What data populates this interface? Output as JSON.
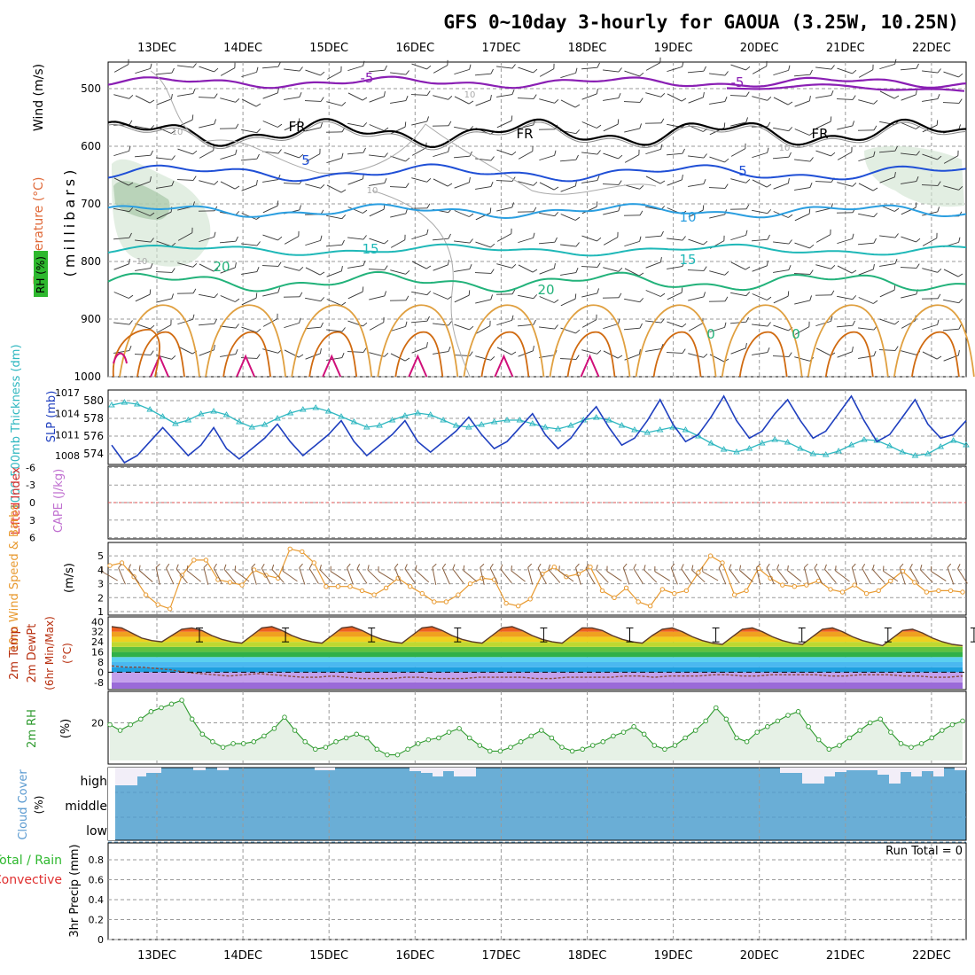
{
  "title": "GFS 0~10day 3-hourly for GAOUA (3.25W, 10.25N)",
  "dates": [
    "13DEC",
    "14DEC",
    "15DEC",
    "16DEC",
    "17DEC",
    "18DEC",
    "19DEC",
    "20DEC",
    "21DEC",
    "22DEC"
  ],
  "panel1": {
    "ylabel": "(millibars)",
    "label_wind": "Wind (m/s)",
    "label_temp": "Temperature (°C)",
    "label_rh": "RH (%)",
    "yticks": [
      "500",
      "600",
      "700",
      "800",
      "900",
      "1000"
    ],
    "contour_labels": [
      "-5",
      "-5",
      "FR",
      "FR",
      "FR",
      "5",
      "5",
      "10",
      "10",
      "15",
      "15",
      "20",
      "20",
      "0",
      "0",
      "10",
      "10",
      "10",
      "10"
    ]
  },
  "panel2": {
    "label_thk": "1000-500mb Thickness (dm)",
    "label_slp": "SLP (mb)",
    "yticks_left": [
      "580",
      "578",
      "576",
      "574"
    ],
    "yticks_right": [
      "1017",
      "1014",
      "1011",
      "1008"
    ]
  },
  "panel3": {
    "label_li": "Lifted Index",
    "label_cape": "CAPE (J/kg)",
    "yticks": [
      "-6",
      "-3",
      "0",
      "3",
      "6"
    ]
  },
  "panel4": {
    "label": "10m Wind Speed & Barbs",
    "unit": "(m/s)",
    "yticks": [
      "5",
      "4",
      "3",
      "2",
      "1"
    ]
  },
  "panel5": {
    "label1": "2m Temp",
    "label2": "2m DewPt",
    "label3": "(6hr Min/Max)",
    "unit": "(°C)",
    "yticks": [
      "40",
      "32",
      "24",
      "16",
      "8",
      "0",
      "-8"
    ]
  },
  "panel6": {
    "label": "2m RH",
    "unit": "(%)",
    "yticks": [
      "20"
    ]
  },
  "panel7": {
    "label": "Cloud Cover",
    "unit": "(%)",
    "levels": [
      "high",
      "middle",
      "low"
    ]
  },
  "panel8": {
    "label1": "Total / Rain",
    "label2": "Convective",
    "label3": "3hr Precip (mm)",
    "run_total": "Run Total = 0",
    "yticks": [
      "0.8",
      "0.6",
      "0.4",
      "0.2",
      "0"
    ]
  },
  "colors": {
    "grid": "#9a9a9a",
    "purple": "#8a1fb4",
    "blue": "#1f4fd6",
    "lightblue": "#2a9ee0",
    "teal": "#1fb8b8",
    "green20": "#22b27a",
    "orange": "#e0a040",
    "darkorange": "#d06a10",
    "magenta": "#d0107a",
    "slp": "#1f3fbf",
    "thickness": "#2fb7c0",
    "wind10": "#e89a30",
    "rh": "#2e9a2e",
    "rhfill": "#e6f1e6",
    "cloud": "#6aaed6"
  },
  "chart_data": [
    {
      "type": "line",
      "title": "1000-500mb Thickness (dm) / SLP (mb)",
      "x": "3-hourly steps 12DEC 12Z to 22DEC",
      "series": [
        {
          "name": "SLP (mb)",
          "values": [
            1009.5,
            1007,
            1008,
            1010,
            1012,
            1010,
            1008,
            1009.5,
            1012,
            1009,
            1007.5,
            1009,
            1010.5,
            1012.5,
            1010,
            1008,
            1009.5,
            1011,
            1013,
            1010,
            1008,
            1009.5,
            1011,
            1013,
            1010,
            1008.5,
            1010,
            1011.5,
            1013.5,
            1011,
            1009,
            1010,
            1012,
            1014,
            1011,
            1009,
            1010.5,
            1013,
            1015,
            1012,
            1009.5,
            1010.5,
            1013,
            1016,
            1012.5,
            1010,
            1011,
            1013.5,
            1016.5,
            1013,
            1010.5,
            1011.5,
            1014,
            1016,
            1013,
            1010.5,
            1011.5,
            1014,
            1016.5,
            1013,
            1010,
            1011,
            1013.5,
            1016,
            1012.5,
            1010.5,
            1011,
            1013
          ]
        },
        {
          "name": "1000-500mb Thickness (dm)",
          "values": [
            579.5,
            579.8,
            579.6,
            579,
            578.2,
            577.4,
            577.8,
            578.5,
            578.8,
            578.4,
            577.6,
            577,
            577.3,
            578,
            578.6,
            579,
            579.2,
            578.8,
            578.2,
            577.6,
            577,
            577.2,
            577.8,
            578.3,
            578.6,
            578.4,
            577.8,
            577.2,
            577,
            577.3,
            577.6,
            577.8,
            577.8,
            577.4,
            577,
            576.8,
            577.2,
            577.8,
            578.1,
            577.8,
            577.2,
            576.7,
            576.4,
            576.7,
            577,
            576.7,
            576,
            575.2,
            574.5,
            574.2,
            574.6,
            575.2,
            575.6,
            575.3,
            574.6,
            574,
            573.9,
            574.3,
            575,
            575.6,
            575.5,
            574.9,
            574.2,
            573.8,
            574,
            574.8,
            575.5,
            575
          ]
        }
      ]
    },
    {
      "type": "line",
      "title": "10m Wind Speed (m/s)",
      "series": [
        {
          "name": "10m Wind",
          "values": [
            4.3,
            4.5,
            3.5,
            2.2,
            1.5,
            1.2,
            3.6,
            4.7,
            4.7,
            3.3,
            3.1,
            2.9,
            4.0,
            3.6,
            3.4,
            5.5,
            5.3,
            4.5,
            2.8,
            2.8,
            2.8,
            2.5,
            2.2,
            2.7,
            3.4,
            2.8,
            2.3,
            1.7,
            1.7,
            2.2,
            3.0,
            3.4,
            3.3,
            1.6,
            1.4,
            1.9,
            3.7,
            4.2,
            3.5,
            3.7,
            4.2,
            2.5,
            2.0,
            2.7,
            1.7,
            1.4,
            2.6,
            2.3,
            2.5,
            3.8,
            5.0,
            4.5,
            2.2,
            2.5,
            4.1,
            3.4,
            2.9,
            2.8,
            2.9,
            3.2,
            2.6,
            2.4,
            2.9,
            2.3,
            2.5,
            3.2,
            3.9,
            3.1,
            2.4,
            2.5,
            2.5,
            2.4
          ]
        }
      ]
    },
    {
      "type": "line",
      "title": "2m RH (%)",
      "series": [
        {
          "name": "2m RH",
          "values": [
            19,
            16,
            19,
            22,
            26,
            28,
            30,
            32,
            22,
            14,
            10,
            7,
            9,
            9,
            10,
            13,
            17,
            23,
            16,
            10,
            6,
            7,
            10,
            12,
            14,
            12,
            6,
            3,
            3,
            6,
            9,
            11,
            12,
            15,
            17,
            12,
            8,
            5,
            5,
            7,
            10,
            13,
            16,
            12,
            7,
            5,
            6,
            8,
            10,
            13,
            15,
            18,
            14,
            8,
            6,
            8,
            12,
            16,
            21,
            28,
            22,
            12,
            10,
            15,
            18,
            21,
            24,
            26,
            18,
            11,
            6,
            8,
            12,
            16,
            20,
            22,
            15,
            9,
            7,
            9,
            12,
            16,
            19,
            21
          ]
        }
      ]
    },
    {
      "type": "area",
      "title": "2m Temp (°C)",
      "series": [
        {
          "name": "2m Temp",
          "values": [
            36,
            35,
            31,
            27,
            25,
            24,
            29,
            34,
            35,
            33,
            29,
            26,
            24,
            23,
            29,
            35,
            36,
            33,
            29,
            26,
            24,
            23,
            29,
            35,
            36,
            33,
            29,
            26,
            24,
            23,
            29,
            35,
            36,
            33,
            29,
            26,
            24,
            23,
            29,
            35,
            36,
            33,
            29,
            26,
            24,
            23,
            29,
            35,
            35,
            33,
            29,
            26,
            24,
            23,
            29,
            34,
            35,
            32,
            28,
            25,
            23,
            22,
            28,
            34,
            35,
            32,
            28,
            25,
            23,
            22,
            28,
            34,
            35,
            32,
            28,
            25,
            23,
            21,
            27,
            33,
            34,
            31,
            27,
            24,
            22,
            21
          ]
        },
        {
          "name": "2m DewPt",
          "values": [
            5,
            4,
            4,
            3,
            2,
            0,
            -1,
            -2,
            -3,
            -2,
            -1,
            -2,
            -3,
            -4,
            -4,
            -3,
            -4,
            -5,
            -5,
            -5,
            -4,
            -4,
            -5,
            -5,
            -5,
            -4,
            -4,
            -4,
            -4,
            -5,
            -5,
            -4,
            -4,
            -4,
            -4,
            -3,
            -3,
            -4,
            -3,
            -3,
            -3,
            -2,
            -2,
            -3,
            -3,
            -2,
            -2,
            -2,
            -2,
            -3,
            -3,
            -2,
            -2,
            -2,
            -3,
            -3,
            -4,
            -4,
            -3
          ]
        }
      ]
    },
    {
      "type": "bar",
      "title": "Cloud Cover (%) high",
      "series": [
        {
          "name": "high",
          "values": [
            80,
            100,
            80,
            30,
            0,
            0,
            0,
            0,
            0,
            0,
            0,
            0,
            0,
            0,
            0,
            0,
            0,
            0,
            0,
            0,
            0,
            0,
            0,
            0,
            0,
            0,
            0,
            0,
            0,
            0,
            0,
            0,
            0,
            0,
            0,
            0,
            0,
            0,
            0,
            0,
            0,
            0,
            40,
            60,
            100,
            60,
            0,
            0,
            0,
            0,
            0,
            0,
            0,
            0,
            0,
            0,
            0,
            0,
            0,
            0,
            0,
            0,
            0,
            0,
            0,
            0,
            0,
            0,
            0,
            0,
            0,
            0,
            0,
            0,
            0,
            0,
            0,
            0,
            0,
            0,
            0,
            0,
            0,
            0,
            0,
            0,
            0,
            0,
            0,
            0,
            0,
            0,
            0,
            0,
            0,
            0,
            0,
            0,
            0,
            0,
            0,
            0,
            0,
            0,
            0,
            0,
            0,
            0,
            0,
            0,
            0,
            0,
            0,
            0,
            0,
            0,
            0,
            0,
            0,
            0,
            0,
            0,
            0,
            0,
            0,
            0,
            0,
            0
          ]
        }
      ]
    },
    {
      "type": "line",
      "title": "3hr Precip (mm)",
      "ylim": [
        0,
        0.9
      ],
      "series": [
        {
          "name": "Total / Rain",
          "values": [
            0,
            0,
            0,
            0,
            0,
            0,
            0,
            0,
            0,
            0
          ]
        }
      ]
    }
  ]
}
